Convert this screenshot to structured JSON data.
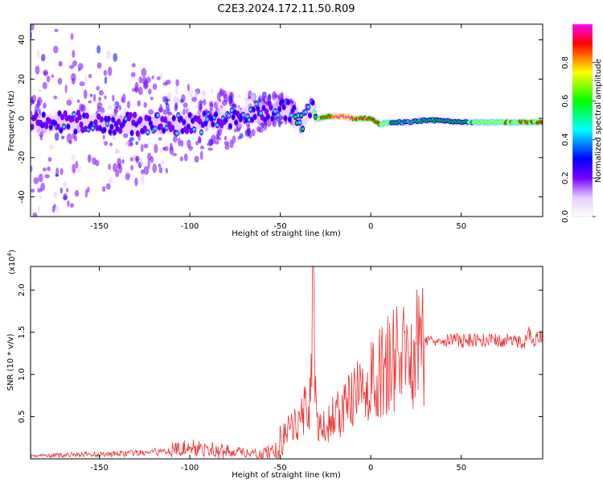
{
  "title": "C2E3.2024.172.11.50.R09",
  "chart_data": [
    {
      "type": "heatmap",
      "xlabel": "Height of straight line (km)",
      "ylabel": "Frequency (Hz)",
      "xlim": [
        -188,
        95
      ],
      "ylim": [
        -50,
        48
      ],
      "xticks": [
        "-150",
        "-100",
        "-50",
        "0",
        "50"
      ],
      "yticks": [
        "-40",
        "-20",
        "0",
        "20",
        "40"
      ],
      "colorbar": {
        "label": "Normalized spectral amplitude",
        "range": [
          0,
          1
        ],
        "ticks": [
          "0.0",
          "0.2",
          "0.4",
          "0.6",
          "0.8"
        ],
        "colormap": [
          "#ffffff",
          "#e6ccff",
          "#7a00ff",
          "#0000ff",
          "#00ffff",
          "#00ff00",
          "#ffff00",
          "#ff0000",
          "#ff00ff"
        ]
      },
      "ridge": {
        "x": [
          -188,
          -170,
          -150,
          -130,
          -110,
          -90,
          -75,
          -60,
          -50,
          -45,
          -40,
          -38,
          -35,
          -33,
          -30,
          -27,
          -25,
          -20,
          -15,
          -10,
          -5,
          0,
          5,
          10,
          20,
          30,
          40,
          50,
          60,
          70,
          80,
          90,
          95
        ],
        "y": [
          -3,
          -2,
          -2,
          -3,
          -3,
          -2,
          0,
          3,
          5,
          4,
          0,
          -3,
          2,
          8,
          0,
          0,
          1,
          1,
          1,
          0,
          0,
          0,
          -3,
          -2,
          -2,
          -1,
          -1,
          -2,
          -2,
          -2,
          -2,
          -2,
          -2
        ],
        "amplitude": [
          0.3,
          0.35,
          0.35,
          0.35,
          0.35,
          0.4,
          0.4,
          0.42,
          0.42,
          0.45,
          0.5,
          0.55,
          0.5,
          0.4,
          0.78,
          0.85,
          0.9,
          0.95,
          0.98,
          0.95,
          0.9,
          0.9,
          0.85,
          0.7,
          0.55,
          0.6,
          0.62,
          0.65,
          0.72,
          0.78,
          0.8,
          0.82,
          0.82
        ]
      }
    },
    {
      "type": "line",
      "xlabel": "Height of straight line (km)",
      "ylabel": "SNR (10 * v/v)",
      "multiplier": "(x10",
      "multiplier_exp": "4",
      "xlim": [
        -188,
        95
      ],
      "ylim": [
        0,
        22800
      ],
      "xticks": [
        "-150",
        "-100",
        "-50",
        "0",
        "50"
      ],
      "yticks": [
        "0.5",
        "1.0",
        "1.5",
        "2.0"
      ],
      "color": "#ee3333",
      "series": [
        {
          "x": [
            -188,
            -170,
            -150,
            -130,
            -115,
            -110,
            -100,
            -90,
            -80,
            -70,
            -60,
            -55,
            -50,
            -45,
            -40,
            -37,
            -35,
            -33,
            -32,
            -31,
            -30,
            -27,
            -25,
            -20,
            -15,
            -10,
            -5,
            0,
            5,
            10,
            15,
            20,
            25,
            30,
            35,
            40,
            50,
            60,
            70,
            80,
            85,
            88,
            90,
            92,
            95
          ],
          "y": [
            350,
            450,
            550,
            650,
            800,
            1200,
            1500,
            1400,
            1100,
            800,
            700,
            1300,
            2500,
            3500,
            4500,
            6000,
            5500,
            9000,
            22800,
            9000,
            4000,
            3500,
            4000,
            5000,
            6000,
            7000,
            8000,
            9000,
            10000,
            11500,
            12000,
            12000,
            13000,
            14000,
            14200,
            14200,
            14000,
            14100,
            14000,
            14000,
            13800,
            15000,
            13800,
            14500,
            14300
          ]
        }
      ]
    }
  ]
}
